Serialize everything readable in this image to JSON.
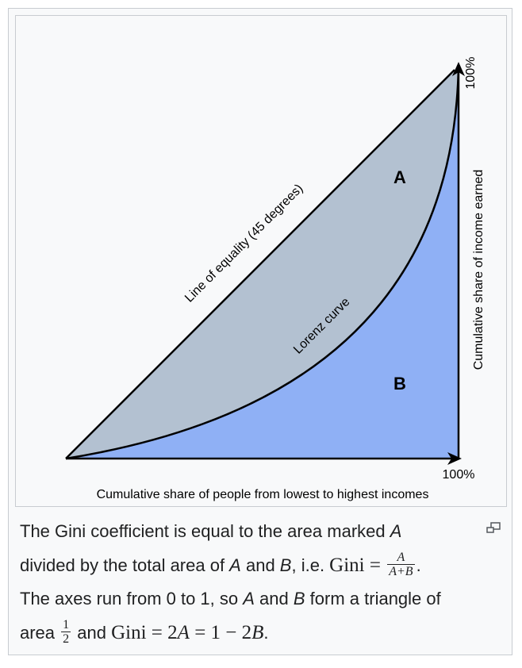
{
  "figure": {
    "region_a_label": "A",
    "region_b_label": "B",
    "equality_line_label": "Line of equality (45 degrees)",
    "lorenz_curve_label": "Lorenz curve",
    "x_axis_label": "Cumulative share of people from lowest to highest incomes",
    "y_axis_label": "Cumulative share of income earned",
    "x_axis_max_label": "100%",
    "y_axis_max_label": "100%",
    "colors": {
      "area_a": "#b3c1d1",
      "area_b": "#8fb0f5",
      "lines": "#000000",
      "background": "#f8f9fa"
    }
  },
  "caption": {
    "line1_text": "The Gini coefficient is equal to the area marked ",
    "line1_var": "A",
    "line2_pre": "divided by the total area of ",
    "line2_var_a": "A",
    "line2_and": " and ",
    "line2_var_b": "B",
    "line2_ie": ", i.e. ",
    "line2_gini": "Gini",
    "line2_eq": " = ",
    "frac_num": "A",
    "frac_den": "A+B",
    "line2_end": ".",
    "line3_pre": "The axes run from 0 to 1, so ",
    "line3_var_a": "A",
    "line3_and": " and ",
    "line3_var_b": "B",
    "line3_post": " form a triangle of",
    "line4_pre": "area ",
    "half_num": "1",
    "half_den": "2",
    "line4_and": " and ",
    "line4_gini": "Gini",
    "line4_eq1": " = 2",
    "line4_a": "A",
    "line4_eq2": " = 1 − 2",
    "line4_b": "B",
    "line4_end": "."
  },
  "enlarge_icon": "enlarge-icon"
}
